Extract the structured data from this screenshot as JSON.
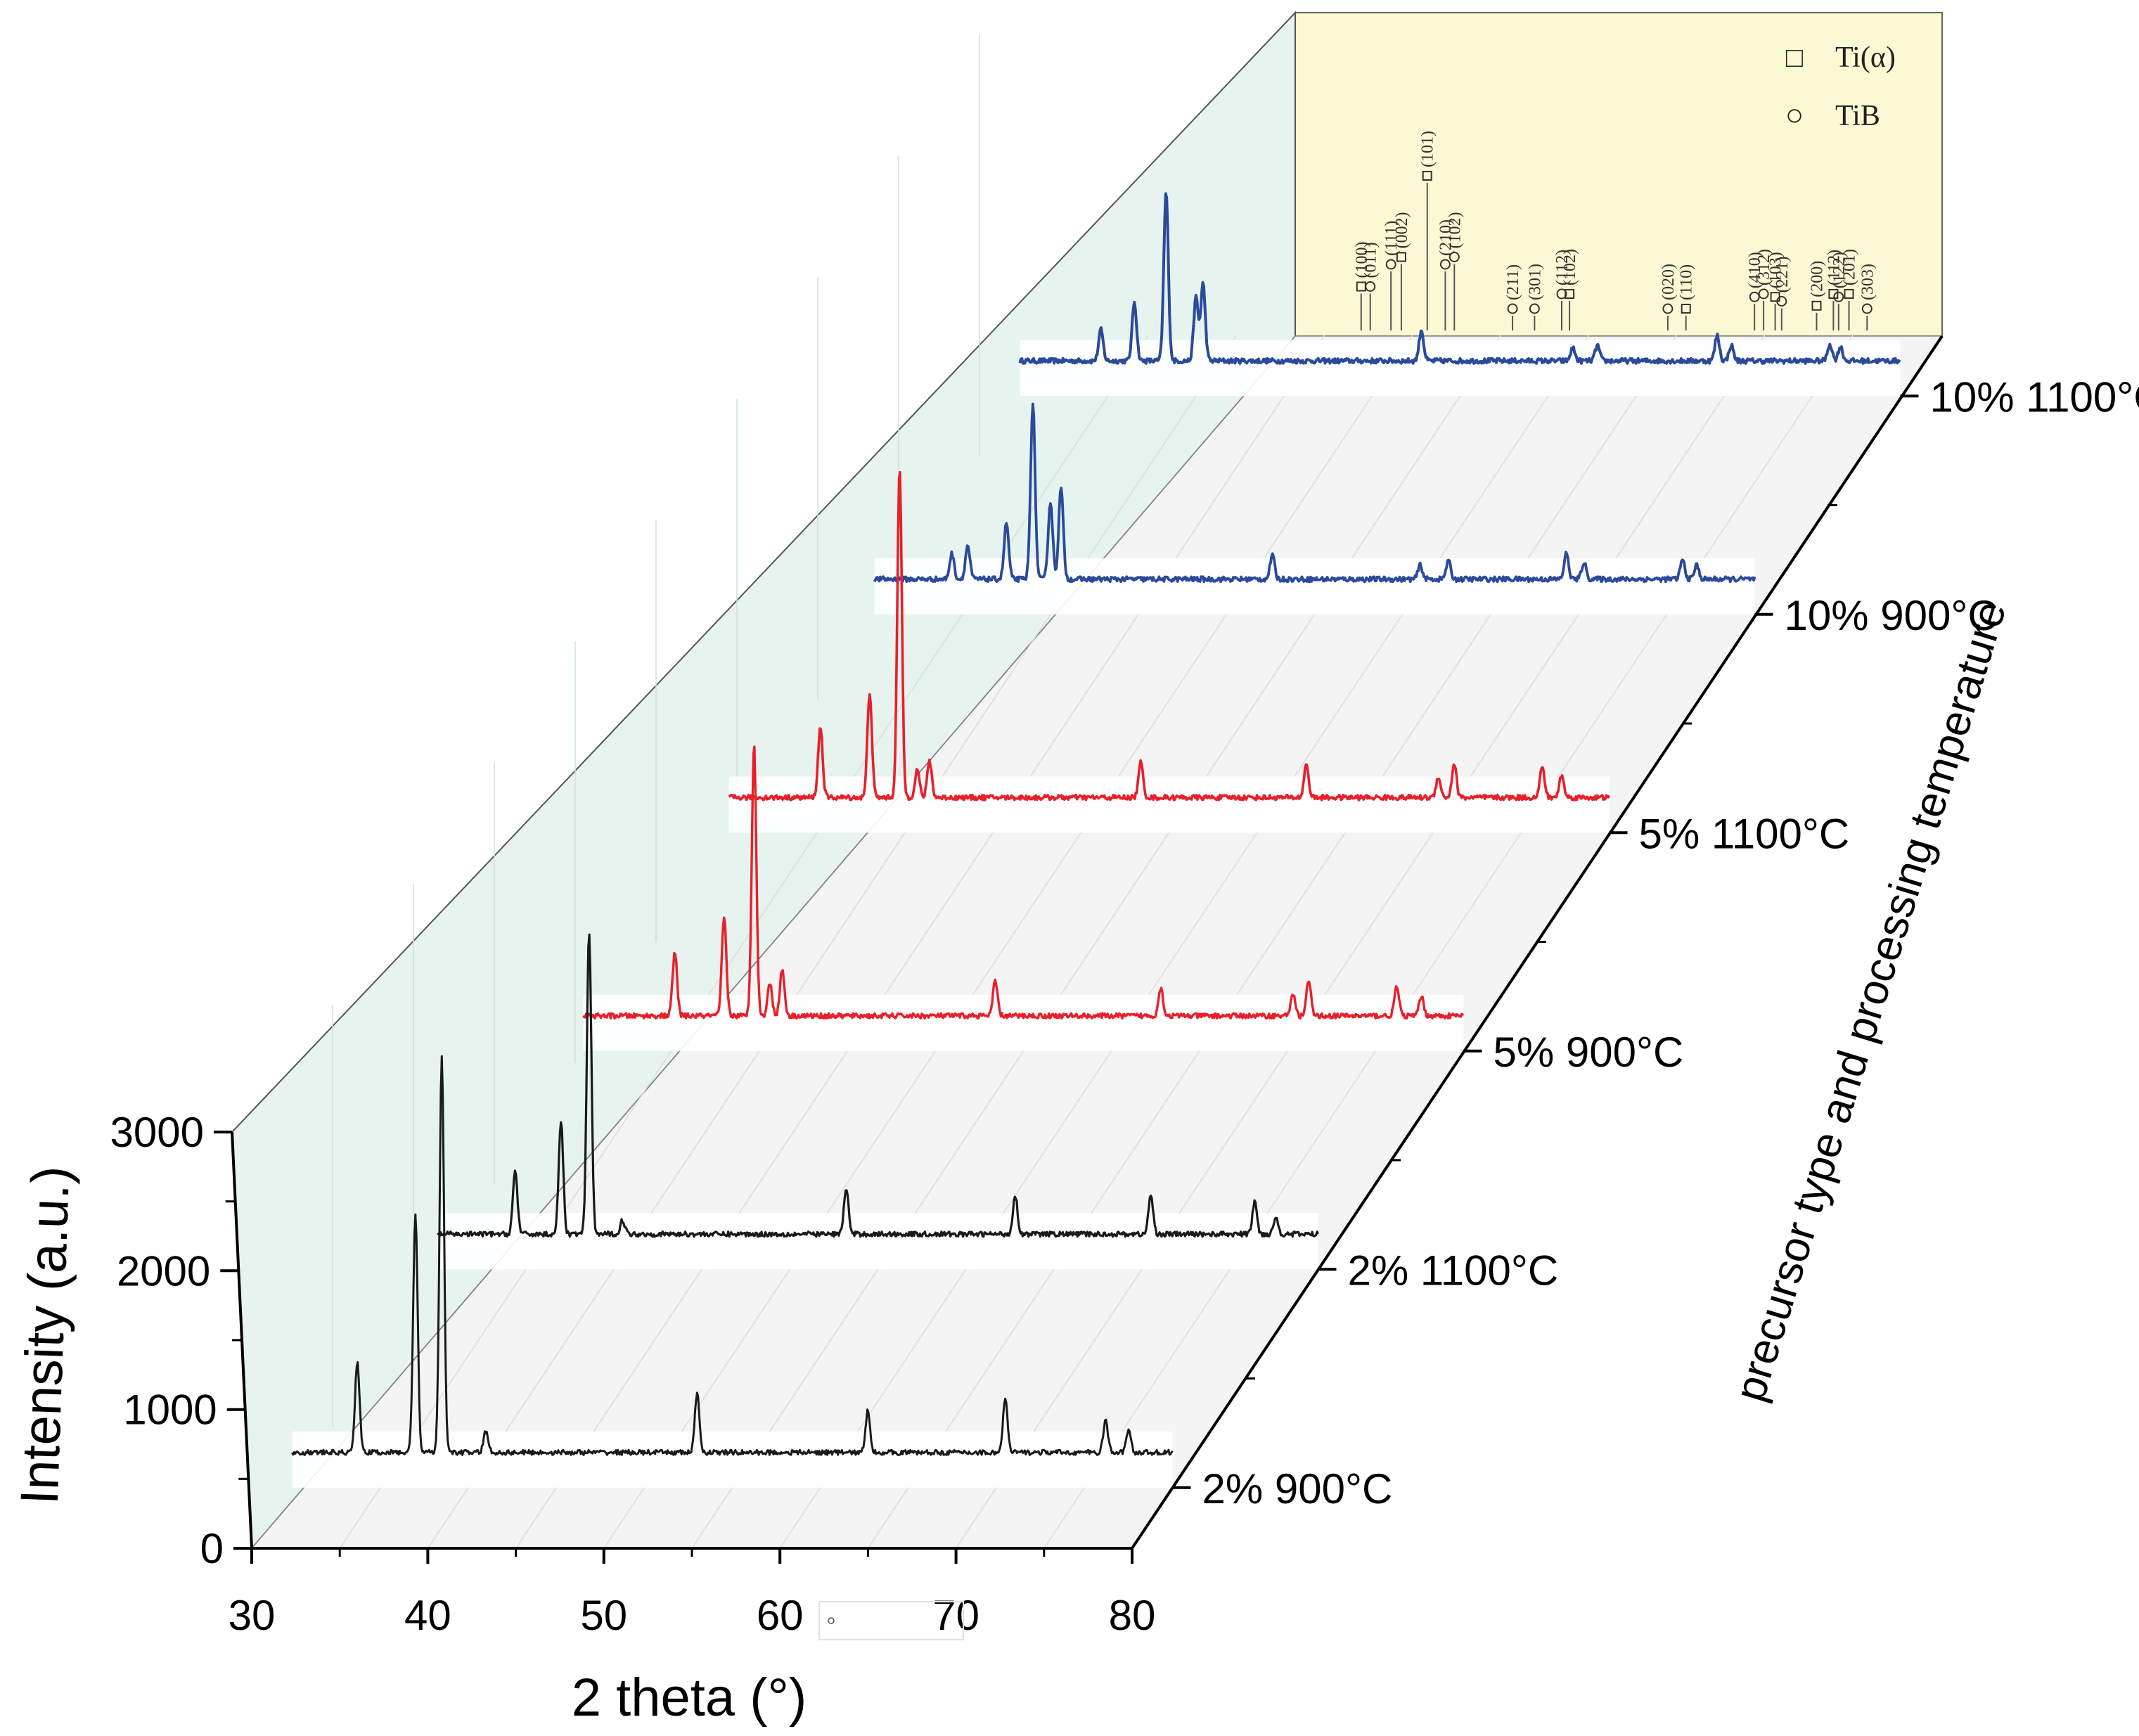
{
  "chart_data": {
    "type": "line",
    "title": "",
    "xlabel": "2 theta (°)",
    "ylabel": "Intensity (a.u.)",
    "zlabel": "precursor type and processing temperature",
    "xlim": [
      30,
      80
    ],
    "ylim": [
      0,
      3000
    ],
    "x_ticks": [
      "30",
      "40",
      "50",
      "60",
      "70",
      "80"
    ],
    "y_ticks": [
      "0",
      "1000",
      "2000",
      "3000"
    ],
    "grid": true,
    "legend_position": "top-right",
    "legend": [
      {
        "symbol": "□",
        "label": "Ti(α)"
      },
      {
        "symbol": "○",
        "label": "TiB"
      }
    ],
    "series": [
      {
        "name": "2% 900°C",
        "color": "#1a1a1a",
        "baseline": 250,
        "peaks": [
          [
            33.7,
            650
          ],
          [
            37.0,
            1700
          ],
          [
            38.5,
            2800
          ],
          [
            41.0,
            150
          ],
          [
            53.0,
            420
          ],
          [
            62.7,
            300
          ],
          [
            70.5,
            380
          ],
          [
            76.2,
            230
          ],
          [
            77.5,
            160
          ]
        ]
      },
      {
        "name": "2% 1100°C",
        "color": "#1a1a1a",
        "baseline": 250,
        "peaks": [
          [
            34.4,
            450
          ],
          [
            37.0,
            800
          ],
          [
            38.6,
            2150
          ],
          [
            40.5,
            100
          ],
          [
            53.2,
            330
          ],
          [
            62.8,
            280
          ],
          [
            70.5,
            280
          ],
          [
            76.4,
            230
          ],
          [
            77.6,
            120
          ]
        ]
      },
      {
        "name": "5% 900°C",
        "color": "#e8202a",
        "baseline": 250,
        "peaks": [
          [
            35.2,
            450
          ],
          [
            38.0,
            700
          ],
          [
            39.7,
            1950
          ],
          [
            40.6,
            230
          ],
          [
            41.3,
            330
          ],
          [
            53.4,
            250
          ],
          [
            62.8,
            200
          ],
          [
            70.3,
            160
          ],
          [
            71.2,
            250
          ],
          [
            76.2,
            210
          ],
          [
            77.6,
            140
          ]
        ]
      },
      {
        "name": "5% 1100°C",
        "color": "#e8202a",
        "baseline": 250,
        "peaks": [
          [
            35.2,
            500
          ],
          [
            38.0,
            750
          ],
          [
            39.7,
            2350
          ],
          [
            40.7,
            200
          ],
          [
            41.4,
            260
          ],
          [
            53.4,
            250
          ],
          [
            62.8,
            240
          ],
          [
            70.3,
            150
          ],
          [
            71.2,
            240
          ],
          [
            76.2,
            220
          ],
          [
            77.3,
            160
          ]
        ]
      },
      {
        "name": "10% 900°C",
        "color": "#2b4a9a",
        "baseline": 250,
        "peaks": [
          [
            34.4,
            180
          ],
          [
            35.3,
            240
          ],
          [
            37.5,
            400
          ],
          [
            39.0,
            1250
          ],
          [
            40.0,
            550
          ],
          [
            40.6,
            650
          ],
          [
            52.6,
            170
          ],
          [
            61.0,
            100
          ],
          [
            62.6,
            130
          ],
          [
            69.3,
            180
          ],
          [
            70.3,
            120
          ],
          [
            75.9,
            140
          ],
          [
            76.7,
            100
          ]
        ]
      },
      {
        "name": "10% 1100°C",
        "color": "#2b4a9a",
        "baseline": 250,
        "peaks": [
          [
            34.6,
            220
          ],
          [
            36.5,
            420
          ],
          [
            38.3,
            1200
          ],
          [
            40.0,
            450
          ],
          [
            40.4,
            550
          ],
          [
            52.8,
            220
          ],
          [
            61.4,
            90
          ],
          [
            62.8,
            110
          ],
          [
            69.6,
            180
          ],
          [
            70.4,
            110
          ],
          [
            76.0,
            120
          ],
          [
            76.6,
            100
          ]
        ]
      }
    ],
    "reference_markers": [
      {
        "hkl": "(100)",
        "phase": "Ti(α)",
        "x": 35.1,
        "intensity": 0.25
      },
      {
        "hkl": "(011)",
        "phase": "TiB",
        "x": 35.8,
        "intensity": 0.25
      },
      {
        "hkl": "(111)",
        "phase": "TiB",
        "x": 37.4,
        "intensity": 0.4
      },
      {
        "hkl": "(002)",
        "phase": "Ti(α)",
        "x": 38.2,
        "intensity": 0.45
      },
      {
        "hkl": "(101)",
        "phase": "Ti(α)",
        "x": 40.2,
        "intensity": 1.0
      },
      {
        "hkl": "(210)",
        "phase": "TiB",
        "x": 41.6,
        "intensity": 0.4
      },
      {
        "hkl": "(102)",
        "phase": "TiB",
        "x": 42.3,
        "intensity": 0.45
      },
      {
        "hkl": "(211)",
        "phase": "TiB",
        "x": 46.8,
        "intensity": 0.1
      },
      {
        "hkl": "(301)",
        "phase": "TiB",
        "x": 48.5,
        "intensity": 0.1
      },
      {
        "hkl": "(112)",
        "phase": "TiB",
        "x": 50.6,
        "intensity": 0.2
      },
      {
        "hkl": "(102)",
        "phase": "Ti(α)",
        "x": 51.2,
        "intensity": 0.2
      },
      {
        "hkl": "(020)",
        "phase": "TiB",
        "x": 58.8,
        "intensity": 0.1
      },
      {
        "hkl": "(110)",
        "phase": "Ti(α)",
        "x": 60.2,
        "intensity": 0.1
      },
      {
        "hkl": "(410)",
        "phase": "TiB",
        "x": 65.5,
        "intensity": 0.18
      },
      {
        "hkl": "(312)",
        "phase": "TiB",
        "x": 66.2,
        "intensity": 0.2
      },
      {
        "hkl": "(103)",
        "phase": "Ti(α)",
        "x": 67.1,
        "intensity": 0.18
      },
      {
        "hkl": "(221)",
        "phase": "TiB",
        "x": 67.6,
        "intensity": 0.15
      },
      {
        "hkl": "(200)",
        "phase": "Ti(α)",
        "x": 70.3,
        "intensity": 0.12
      },
      {
        "hkl": "(112)",
        "phase": "Ti(α)",
        "x": 71.6,
        "intensity": 0.2
      },
      {
        "hkl": "(122)",
        "phase": "TiB",
        "x": 72.0,
        "intensity": 0.18
      },
      {
        "hkl": "(201)",
        "phase": "Ti(α)",
        "x": 72.8,
        "intensity": 0.2
      },
      {
        "hkl": "(303)",
        "phase": "TiB",
        "x": 74.2,
        "intensity": 0.1
      }
    ]
  }
}
